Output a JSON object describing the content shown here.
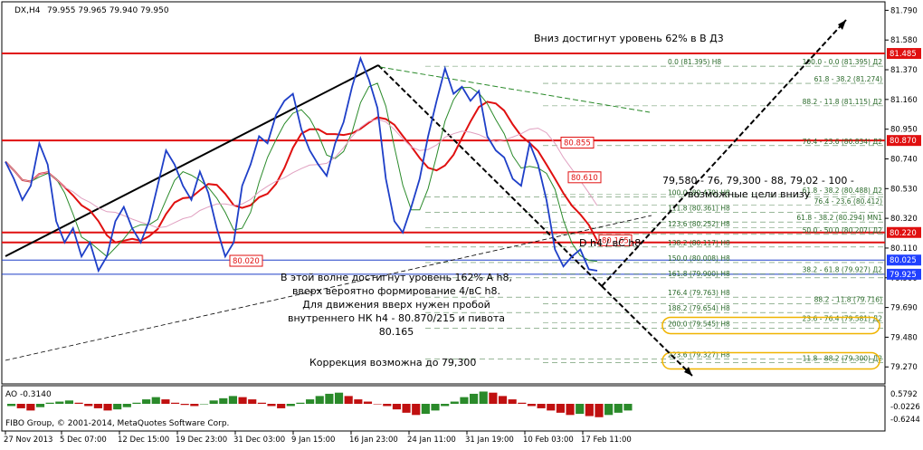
{
  "header": {
    "symbol": "DX,H4",
    "ohlc": "79.955 79.965 79.940 79.950"
  },
  "indicator": {
    "name": "AO -0.3140",
    "ticks": [
      "0.5792",
      "-0.0226",
      "-0.6244"
    ]
  },
  "copyright": "FIBO Group, © 2001-2014, MetaQuotes Software Corp.",
  "annotations": {
    "top": "Вниз достигнут уровень 62% в В Д3",
    "targets_line1": "79,580 - 76, 79,300 - 88, 79,02 - 100 -",
    "targets_line2": "возможные цели внизу",
    "wave_label": "D h4 / вC h8",
    "main": [
      "В этой волне достигнут уровень 162% А h8,",
      "вверх вероятно формирование 4/вC h8.",
      "Для движения вверх нужен пробой",
      "внутреннего НК h4 - 80.870/215 и пивота",
      "80.165"
    ],
    "correction": "Коррекция возможна до 79,300"
  },
  "colors": {
    "background": "#ffffff",
    "price": "#1e3fc8",
    "ma_red": "#e01010",
    "ma_green": "#2a8a2a",
    "ma_purple": "#8a2be2",
    "highlight": "#f0b400",
    "current_price_bg": "#2040ff",
    "level_price_bg": "#e01010"
  },
  "chart_data": {
    "type": "line",
    "title": "DX,H4",
    "xlabel": "",
    "ylabel": "",
    "ylim": [
      79.15,
      81.85
    ],
    "yticks": [
      "81.790",
      "81.580",
      "81.370",
      "81.160",
      "80.950",
      "80.740",
      "80.530",
      "80.320",
      "80.110",
      "79.900",
      "79.690",
      "79.480",
      "79.270"
    ],
    "xticks": [
      "27 Nov 2013",
      "5 Dec 07:00",
      "12 Dec 15:00",
      "19 Dec 23:00",
      "31 Dec 03:00",
      "9 Jan 15:00",
      "16 Jan 23:00",
      "24 Jan 11:00",
      "31 Jan 19:00",
      "10 Feb 03:00",
      "17 Feb 11:00"
    ],
    "series": [
      {
        "values": [
          80.72,
          80.6,
          80.45,
          80.55,
          80.85,
          80.7,
          80.3,
          80.15,
          80.25,
          80.05,
          80.15,
          79.95,
          80.05,
          80.3,
          80.4,
          80.25,
          80.15,
          80.3,
          80.55,
          80.8,
          80.7,
          80.55,
          80.45,
          80.65,
          80.5,
          80.25,
          80.05,
          80.15,
          80.55,
          80.7,
          80.9,
          80.85,
          81.05,
          81.15,
          81.2,
          80.95,
          80.8,
          80.7,
          80.62,
          80.85,
          81.0,
          81.25,
          81.45,
          81.3,
          81.1,
          80.6,
          80.3,
          80.22,
          80.4,
          80.6,
          80.9,
          81.15,
          81.38,
          81.2,
          81.25,
          81.15,
          81.22,
          80.9,
          80.8,
          80.75,
          80.6,
          80.55,
          80.85,
          80.7,
          80.45,
          80.1,
          79.98,
          80.05,
          80.1,
          79.96,
          79.95
        ]
      }
    ],
    "price_labels": [
      {
        "value": "81.485",
        "kind": "level"
      },
      {
        "value": "80.870",
        "kind": "level"
      },
      {
        "value": "80.220",
        "kind": "level"
      },
      {
        "value": "80.025",
        "kind": "current"
      },
      {
        "value": "79.925",
        "kind": "current"
      }
    ],
    "box_labels": [
      {
        "text": "80.855",
        "value": 80.855
      },
      {
        "text": "80.610",
        "value": 80.61
      },
      {
        "text": "80.165",
        "value": 80.165
      },
      {
        "text": "80.020",
        "value": 80.02
      }
    ],
    "fib_labels": [
      {
        "text": "0.0 (81.395) H8",
        "value": 81.395
      },
      {
        "text": "100.0 - 0.0 (81.395) Д2",
        "value": 81.395
      },
      {
        "text": "61.8 - 38.2 (81.274)",
        "value": 81.274
      },
      {
        "text": "88.2 - 11.8 (81.115) Д2",
        "value": 81.115
      },
      {
        "text": "76.4 - 23.6 (80.834) Д2",
        "value": 80.834
      },
      {
        "text": "61.8 - 38.2 (80.488) Д2",
        "value": 80.488
      },
      {
        "text": "100.0 (80.470) H8",
        "value": 80.47
      },
      {
        "text": "76.4 - 23.6 (80.412)",
        "value": 80.412
      },
      {
        "text": "111.8 (80.361) H8",
        "value": 80.361
      },
      {
        "text": "61.8 - 38.2 (80.294) MN1",
        "value": 80.294
      },
      {
        "text": "123.6 (80.252) H8",
        "value": 80.252
      },
      {
        "text": "50.0 - 50.0 (80.207) Д2",
        "value": 80.207
      },
      {
        "text": "138.2 (80.117) H8",
        "value": 80.117
      },
      {
        "text": "150.0 (80.008) H8",
        "value": 80.008
      },
      {
        "text": "38.2 - 61.8 (79.927) Д2",
        "value": 79.927
      },
      {
        "text": "161.8 (79.900) H8",
        "value": 79.9
      },
      {
        "text": "176.4 (79.763) H8",
        "value": 79.763
      },
      {
        "text": "88.2 - 11.8 (79.716)",
        "value": 79.716
      },
      {
        "text": "188.2 (79.654) H8",
        "value": 79.654
      },
      {
        "text": "200.0 (79.545) H8",
        "value": 79.545
      },
      {
        "text": "23.6 - 76.4 (79.581) Д2",
        "value": 79.581
      },
      {
        "text": "223.6 (79.327) H8",
        "value": 79.327
      },
      {
        "text": "11.8 - 88.2 (79.300) Д2",
        "value": 79.3
      }
    ],
    "red_levels": [
      81.485,
      80.87,
      80.22,
      80.15
    ],
    "blue_levels": [
      80.025,
      79.925
    ],
    "ao": [
      -0.1,
      -0.2,
      -0.3,
      -0.15,
      0.05,
      0.1,
      0.15,
      0.05,
      -0.1,
      -0.2,
      -0.3,
      -0.25,
      -0.15,
      0.05,
      0.2,
      0.3,
      0.2,
      0.05,
      -0.05,
      -0.1,
      0.0,
      0.15,
      0.25,
      0.35,
      0.3,
      0.2,
      0.05,
      -0.1,
      -0.2,
      -0.1,
      0.05,
      0.2,
      0.35,
      0.45,
      0.5,
      0.35,
      0.2,
      0.1,
      0.0,
      -0.1,
      -0.25,
      -0.4,
      -0.5,
      -0.45,
      -0.3,
      -0.1,
      0.1,
      0.3,
      0.45,
      0.55,
      0.5,
      0.35,
      0.2,
      0.05,
      -0.1,
      -0.2,
      -0.3,
      -0.4,
      -0.5,
      -0.45,
      -0.55,
      -0.6,
      -0.5,
      -0.4,
      -0.3
    ]
  }
}
